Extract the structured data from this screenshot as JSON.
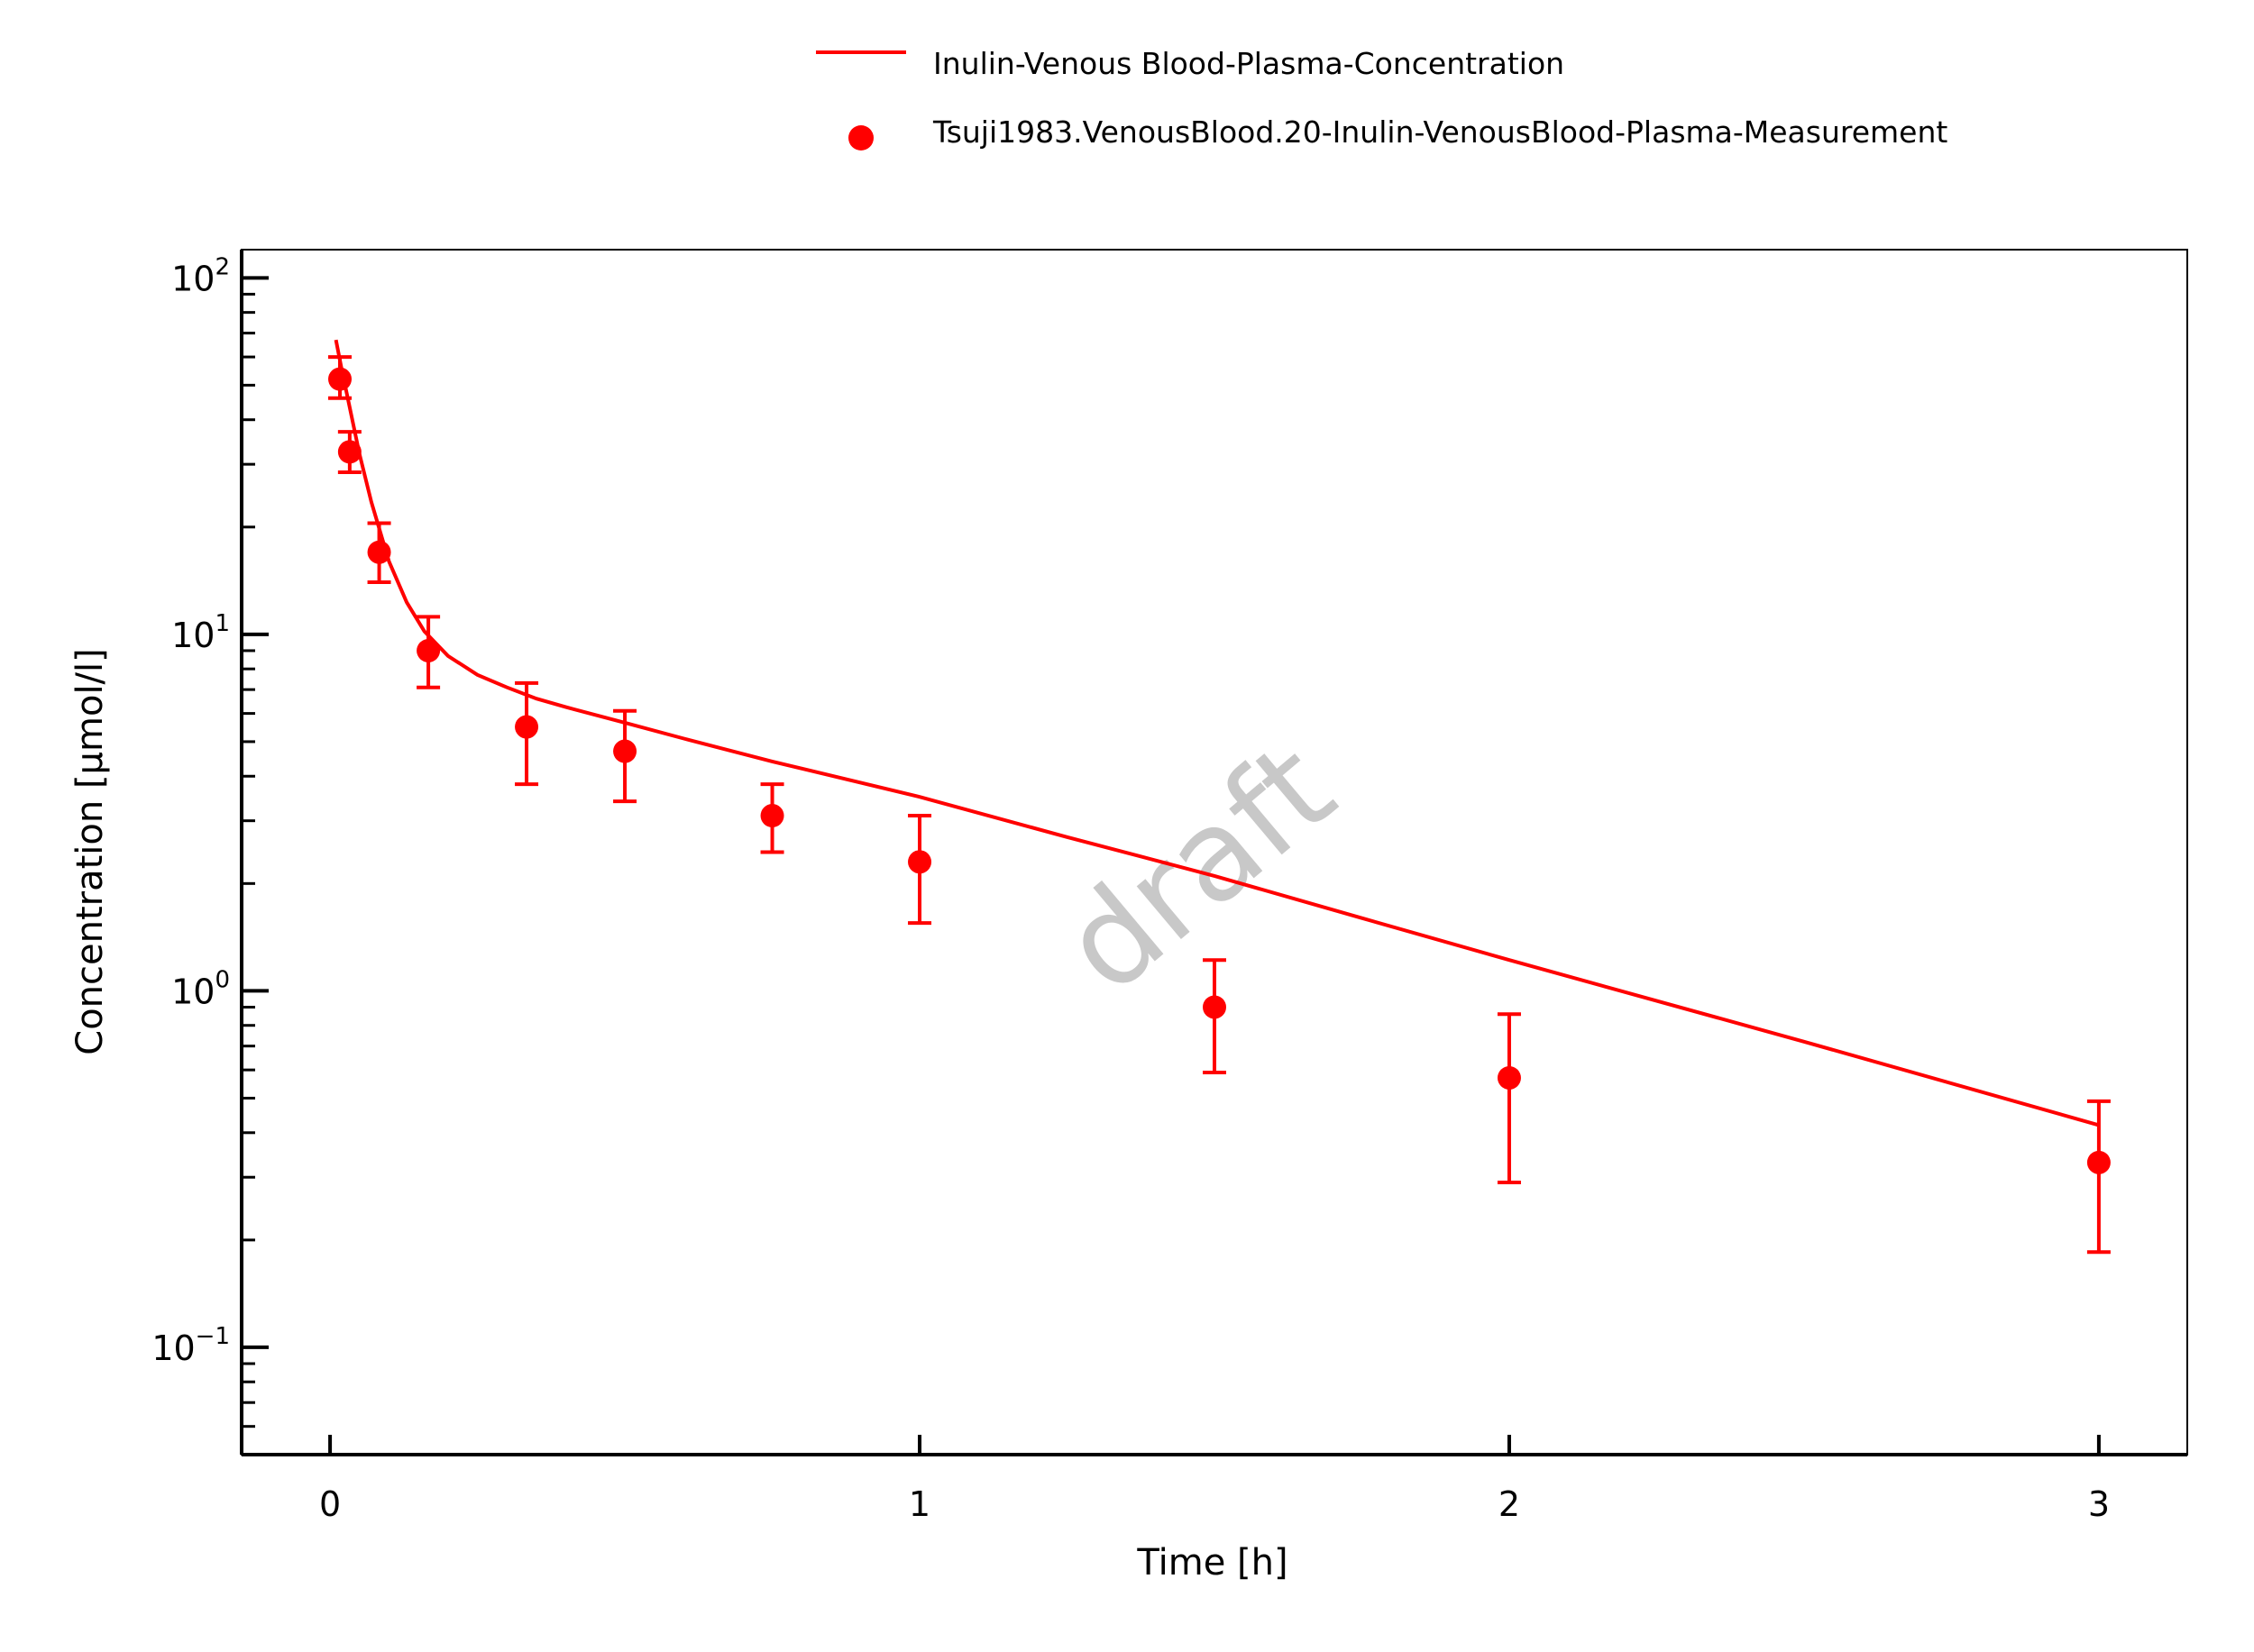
{
  "chart_data": {
    "type": "scatter",
    "xlabel": "Time [h]",
    "ylabel": "Concentration [µmol/l]",
    "x_ticks": [
      "0",
      "1",
      "2",
      "3"
    ],
    "y_tick_base": "10",
    "y_tick_exponents": [
      "−1",
      "0",
      "1",
      "2"
    ],
    "y_scale": "log",
    "xlim": [
      -0.15,
      3.15
    ],
    "ylim": [
      0.05,
      120
    ],
    "grid": false,
    "legend_placement": "top-center",
    "watermark": "draft",
    "series": [
      {
        "name": "Inulin-Venous Blood-Plasma-Concentration",
        "kind": "line",
        "color": "#ff0000",
        "x": [
          0.01,
          0.02,
          0.03,
          0.05,
          0.07,
          0.1,
          0.13,
          0.16,
          0.2,
          0.25,
          0.3,
          0.35,
          0.4,
          0.5,
          0.6,
          0.75,
          1.0,
          1.25,
          1.5,
          1.75,
          2.0,
          2.5,
          3.0
        ],
        "y": [
          67,
          55,
          46,
          32,
          23.5,
          16,
          12.3,
          10.2,
          8.7,
          7.7,
          7.1,
          6.6,
          6.25,
          5.65,
          5.1,
          4.4,
          3.5,
          2.7,
          2.1,
          1.6,
          1.22,
          0.72,
          0.42
        ]
      },
      {
        "name": "Tsuji1983.VenousBlood.20-Inulin-VenousBlood-Plasma-Measurement",
        "kind": "scatter",
        "color": "#ff0000",
        "x": [
          0.0167,
          0.0333,
          0.0833,
          0.1667,
          0.3333,
          0.5,
          0.75,
          1.0,
          1.5,
          2.0,
          3.0
        ],
        "y": [
          52,
          32.5,
          17,
          9,
          5.5,
          4.7,
          3.1,
          2.3,
          0.9,
          0.57,
          0.33
        ],
        "y_upper": [
          60,
          37,
          20.5,
          11.2,
          7.3,
          6.1,
          3.8,
          3.1,
          1.22,
          0.86,
          0.49
        ],
        "y_lower": [
          46,
          28.5,
          14,
          7.1,
          3.8,
          3.4,
          2.45,
          1.55,
          0.59,
          0.29,
          0.185
        ]
      }
    ]
  }
}
